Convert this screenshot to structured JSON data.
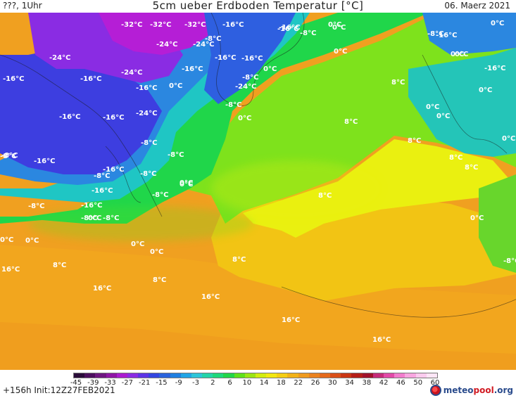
{
  "header": {
    "left": "???, 1Uhr",
    "title": "5cm ueber Erdboden Temperatur [°C]",
    "date": "06. Maerz 2021"
  },
  "footer": {
    "left": "+156h  Init:12Z27FEB2021",
    "logo_prefix": "meteo",
    "logo_mid": "pool",
    "logo_suffix": ".org"
  },
  "colorbar": {
    "ticks": [
      "-45",
      "-39",
      "-33",
      "-27",
      "-21",
      "-15",
      "-9",
      "-3",
      "2",
      "6",
      "10",
      "14",
      "18",
      "22",
      "26",
      "30",
      "34",
      "38",
      "42",
      "46",
      "50",
      "60"
    ],
    "colors": [
      "#2a0c3a",
      "#4c0f5e",
      "#6e1780",
      "#8f16a5",
      "#aa1bd0",
      "#8a2ce3",
      "#5c34e6",
      "#3345e0",
      "#2a62dc",
      "#1f7fe0",
      "#21a5e6",
      "#2dc5d8",
      "#24d4a8",
      "#1ed87a",
      "#22d648",
      "#5fe01a",
      "#9be514",
      "#d2ec10",
      "#f2e812",
      "#f5ce14",
      "#f2b218",
      "#ef9a1e",
      "#eb821f",
      "#e56a1c",
      "#d94f18",
      "#c93614",
      "#b41e18",
      "#a0122c",
      "#c52c7a",
      "#e24aa8",
      "#f27ccd",
      "#f8a6e0",
      "#fbcbee",
      "#fde6f6"
    ]
  },
  "map": {
    "labels": [
      {
        "text": "-32°C"
      },
      {
        "text": "-32°C"
      },
      {
        "text": "-32°C"
      },
      {
        "text": "-16°C"
      },
      {
        "text": "-24°C"
      },
      {
        "text": "-24°C"
      },
      {
        "text": "-8°C"
      },
      {
        "text": "-24°C"
      },
      {
        "text": "-16°C"
      },
      {
        "text": "-16°C"
      },
      {
        "text": "-16°C"
      },
      {
        "text": "-8°C"
      },
      {
        "text": "-16°C"
      },
      {
        "text": "-16°C"
      },
      {
        "text": "-24°C"
      },
      {
        "text": "-16°C"
      },
      {
        "text": "-16°C"
      },
      {
        "text": "-16°C"
      },
      {
        "text": "-16°C"
      },
      {
        "text": "-24°C"
      },
      {
        "text": "-8°C"
      },
      {
        "text": "-24°C"
      },
      {
        "text": "-8°C"
      },
      {
        "text": "0°C"
      },
      {
        "text": "0°C"
      },
      {
        "text": "0°C"
      },
      {
        "text": "0°C"
      },
      {
        "text": "-8°C"
      },
      {
        "text": "-16°C"
      },
      {
        "text": "-16°C"
      },
      {
        "text": "-16°C"
      },
      {
        "text": "-8°C"
      },
      {
        "text": "-8°C"
      },
      {
        "text": "-8°C"
      },
      {
        "text": "-16°C"
      },
      {
        "text": "-8°C"
      },
      {
        "text": "-16°C"
      },
      {
        "text": "-8°C"
      },
      {
        "text": "0°C"
      },
      {
        "text": "-8°C"
      },
      {
        "text": "-8°C"
      },
      {
        "text": "-8°C"
      },
      {
        "text": "0°C"
      },
      {
        "text": "0°C"
      },
      {
        "text": "-8°C"
      },
      {
        "text": "0°C"
      },
      {
        "text": "0°C"
      },
      {
        "text": "0°C"
      },
      {
        "text": "8°C"
      },
      {
        "text": "16°C"
      },
      {
        "text": "8°C"
      },
      {
        "text": "8°C"
      },
      {
        "text": "16°C"
      },
      {
        "text": "16°C"
      },
      {
        "text": "8°C"
      },
      {
        "text": "8°C"
      },
      {
        "text": "8°C"
      },
      {
        "text": "8°C"
      },
      {
        "text": "16°C"
      },
      {
        "text": "16°C"
      },
      {
        "text": "8°C"
      },
      {
        "text": "-16°C"
      },
      {
        "text": "0°C"
      },
      {
        "text": "-8°C"
      },
      {
        "text": "0°C"
      },
      {
        "text": "0°C"
      },
      {
        "text": "0°C"
      },
      {
        "text": "0°C"
      },
      {
        "text": "0°C"
      },
      {
        "text": "0°C"
      },
      {
        "text": "8°C"
      },
      {
        "text": "0°C"
      },
      {
        "text": "-16°C"
      },
      {
        "text": "0°C"
      },
      {
        "text": "0°C"
      },
      {
        "text": "-8°C"
      },
      {
        "text": "0°C"
      }
    ]
  }
}
